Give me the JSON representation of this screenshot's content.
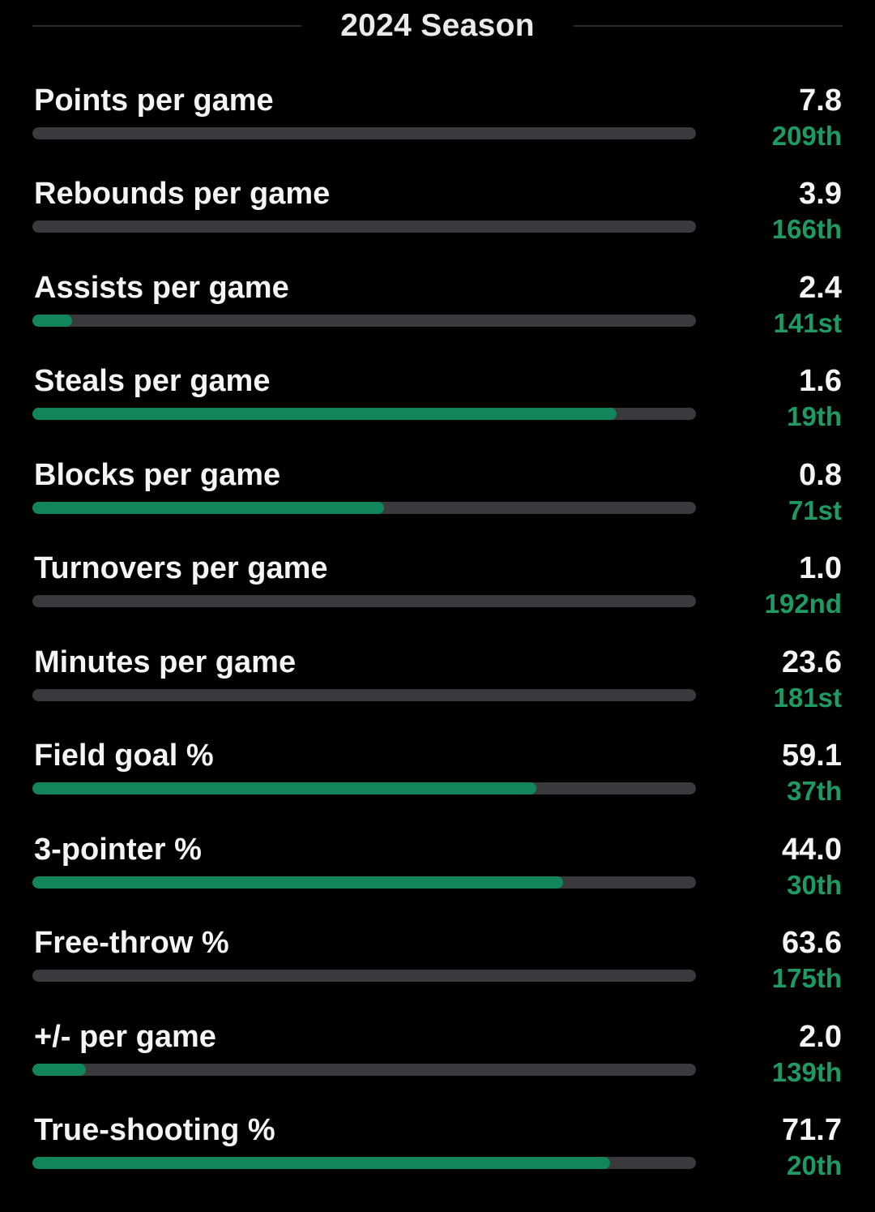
{
  "header": {
    "title": "2024 Season"
  },
  "colors": {
    "background": "#000000",
    "track": "#3a3a3c",
    "fill": "#12855a",
    "rank": "#1f9a63",
    "text": "#f4f4f4"
  },
  "stats": [
    {
      "label": "Points per game",
      "value": "7.8",
      "rank": "209th",
      "fill_fraction": 0.0
    },
    {
      "label": "Rebounds per game",
      "value": "3.9",
      "rank": "166th",
      "fill_fraction": 0.0
    },
    {
      "label": "Assists per game",
      "value": "2.4",
      "rank": "141st",
      "fill_fraction": 0.06
    },
    {
      "label": "Steals per game",
      "value": "1.6",
      "rank": "19th",
      "fill_fraction": 0.88
    },
    {
      "label": "Blocks per game",
      "value": "0.8",
      "rank": "71st",
      "fill_fraction": 0.53
    },
    {
      "label": "Turnovers per game",
      "value": "1.0",
      "rank": "192nd",
      "fill_fraction": 0.0
    },
    {
      "label": "Minutes per game",
      "value": "23.6",
      "rank": "181st",
      "fill_fraction": 0.0
    },
    {
      "label": "Field goal %",
      "value": "59.1",
      "rank": "37th",
      "fill_fraction": 0.76
    },
    {
      "label": "3-pointer %",
      "value": "44.0",
      "rank": "30th",
      "fill_fraction": 0.8
    },
    {
      "label": "Free-throw %",
      "value": "63.6",
      "rank": "175th",
      "fill_fraction": 0.0
    },
    {
      "label": "+/- per game",
      "value": "2.0",
      "rank": "139th",
      "fill_fraction": 0.08
    },
    {
      "label": "True-shooting %",
      "value": "71.7",
      "rank": "20th",
      "fill_fraction": 0.87
    }
  ]
}
